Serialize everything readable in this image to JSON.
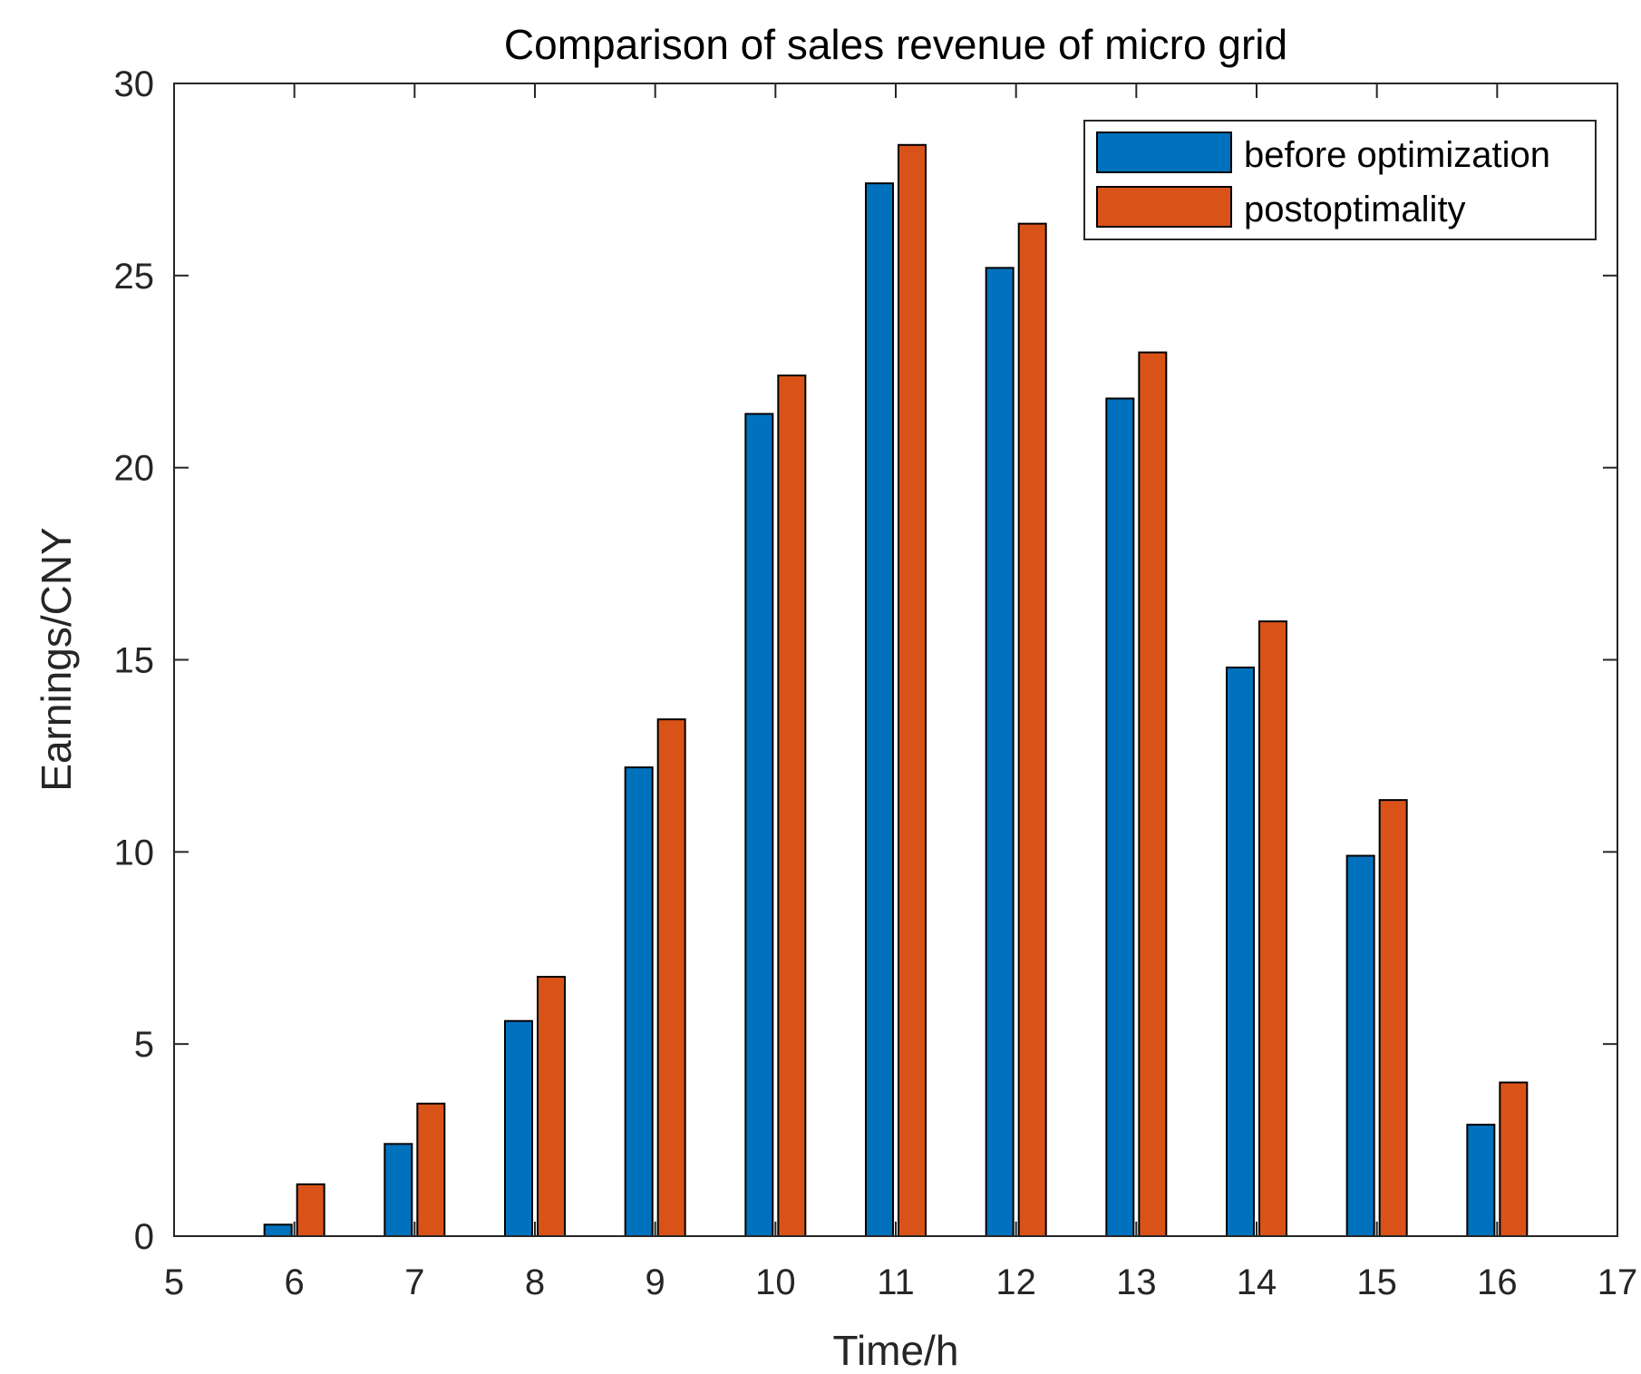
{
  "chart_data": {
    "type": "bar",
    "title": "Comparison of sales revenue of micro grid",
    "xlabel": "Time/h",
    "ylabel": "Earnings/CNY",
    "xlim": [
      5,
      17
    ],
    "ylim": [
      0,
      30
    ],
    "xticks": [
      "5",
      "6",
      "7",
      "8",
      "9",
      "10",
      "11",
      "12",
      "13",
      "14",
      "15",
      "16",
      "17"
    ],
    "yticks": [
      "0",
      "5",
      "10",
      "15",
      "20",
      "25",
      "30"
    ],
    "categories": [
      5,
      6,
      7,
      8,
      9,
      10,
      11,
      12,
      13,
      14,
      15,
      16,
      17
    ],
    "series": [
      {
        "name": "before optimization",
        "color": "#0072BD",
        "values": [
          0,
          0.3,
          2.4,
          5.6,
          12.2,
          21.4,
          27.4,
          25.2,
          21.8,
          14.8,
          9.9,
          2.9,
          0
        ]
      },
      {
        "name": "postoptimality",
        "color": "#D95319",
        "values": [
          0,
          1.35,
          3.45,
          6.75,
          13.45,
          22.4,
          28.4,
          26.35,
          23.0,
          16.0,
          11.35,
          4.0,
          0
        ]
      }
    ],
    "legend_position": "top-right",
    "grid": false
  }
}
